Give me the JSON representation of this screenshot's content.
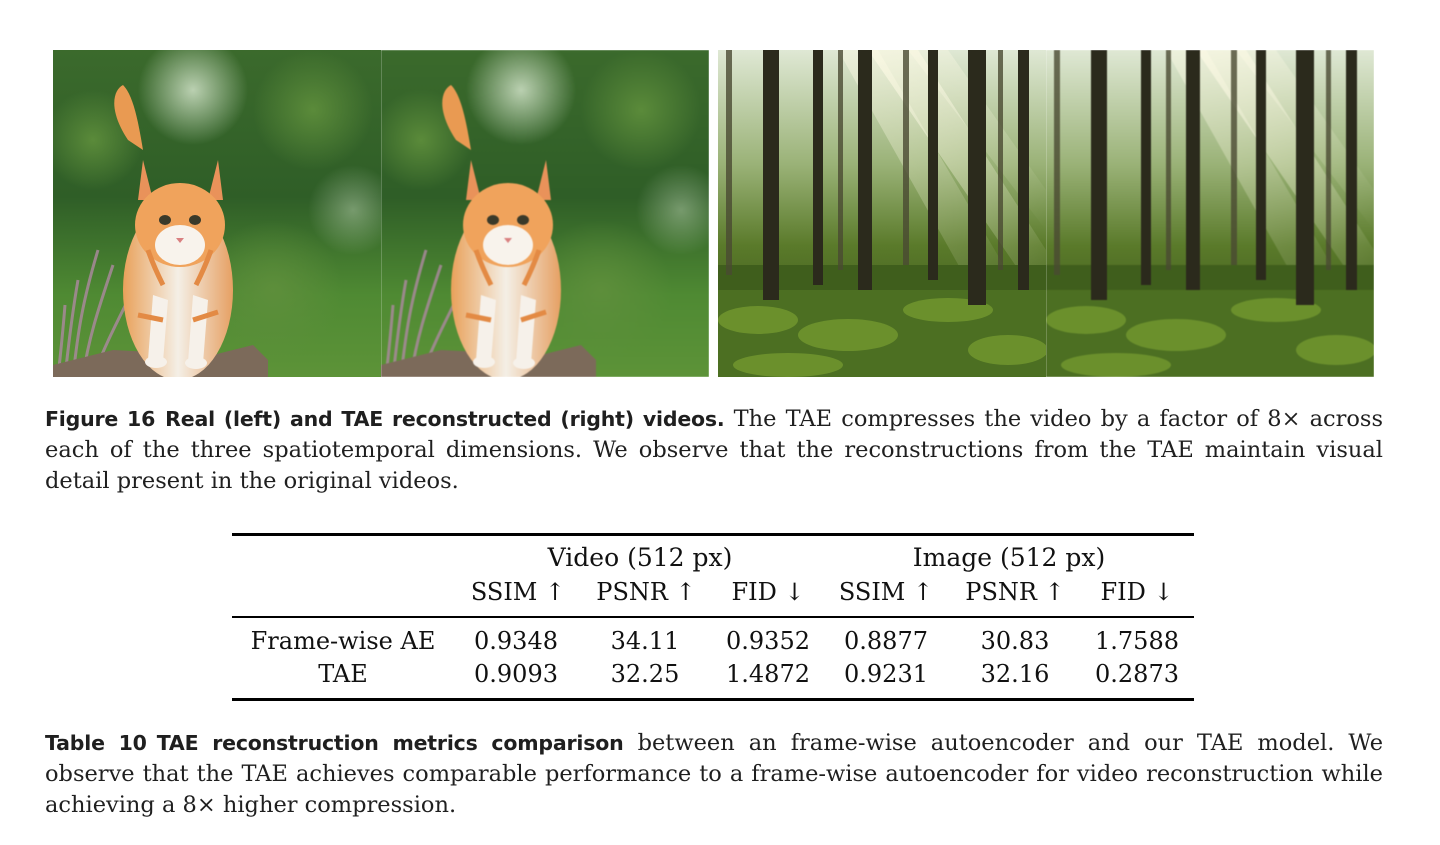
{
  "figure": {
    "panels": [
      {
        "id": "cat-real",
        "subject": "cat",
        "variant": "real"
      },
      {
        "id": "cat-rec",
        "subject": "cat",
        "variant": "reconstructed"
      },
      {
        "id": "forest-real",
        "subject": "forest",
        "variant": "real"
      },
      {
        "id": "forest-rec",
        "subject": "forest",
        "variant": "reconstructed"
      }
    ],
    "caption": {
      "label": "Figure 16",
      "title": "Real (left) and TAE reconstructed (right) videos.",
      "text": "The TAE compresses the video by a factor of 8× across each of the three spatiotemporal dimensions. We observe that the reconstructions from the TAE maintain visual detail present in the original videos."
    }
  },
  "table": {
    "groups": [
      "Video (512 px)",
      "Image (512 px)"
    ],
    "columns": [
      "SSIM ↑",
      "PSNR ↑",
      "FID ↓",
      "SSIM ↑",
      "PSNR ↑",
      "FID ↓"
    ],
    "rows": [
      {
        "label": "Frame-wise AE",
        "values": [
          "0.9348",
          "34.11",
          "0.9352",
          "0.8877",
          "30.83",
          "1.7588"
        ]
      },
      {
        "label": "TAE",
        "values": [
          "0.9093",
          "32.25",
          "1.4872",
          "0.9231",
          "32.16",
          "0.2873"
        ]
      }
    ],
    "caption": {
      "label": "Table 10",
      "title": "TAE reconstruction metrics comparison",
      "text": "between an frame-wise autoencoder and our TAE model. We observe that the TAE achieves comparable performance to a frame-wise autoencoder for video reconstruction while achieving a 8× higher compression."
    }
  }
}
